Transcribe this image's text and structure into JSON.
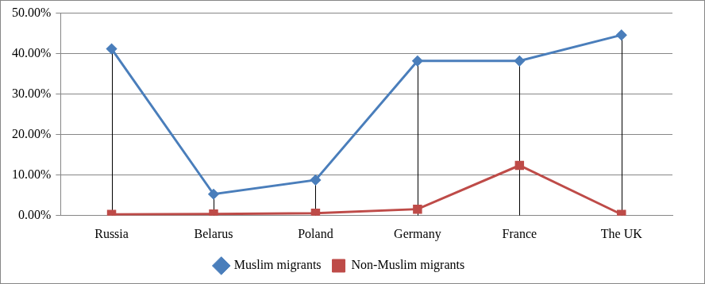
{
  "chart_data": {
    "type": "line",
    "categories": [
      "Russia",
      "Belarus",
      "Poland",
      "Germany",
      "France",
      "The UK"
    ],
    "series": [
      {
        "name": "Muslim migrants",
        "color": "#4a7ebb",
        "marker": "diamond",
        "values": [
          41.2,
          5.3,
          8.8,
          38.2,
          38.2,
          44.6
        ]
      },
      {
        "name": "Non-Muslim migrants",
        "color": "#be4b48",
        "marker": "square",
        "values": [
          0.3,
          0.4,
          0.6,
          1.6,
          12.4,
          0.3
        ]
      }
    ],
    "ylim": [
      0,
      50
    ],
    "yticks": [
      {
        "value": 0,
        "label": "0.00%"
      },
      {
        "value": 10,
        "label": "10.00%"
      },
      {
        "value": 20,
        "label": "20.00%"
      },
      {
        "value": 30,
        "label": "30.00%"
      },
      {
        "value": 40,
        "label": "40.00%"
      },
      {
        "value": 50,
        "label": "50.00%"
      }
    ],
    "grid": true,
    "legend": "bottom"
  }
}
